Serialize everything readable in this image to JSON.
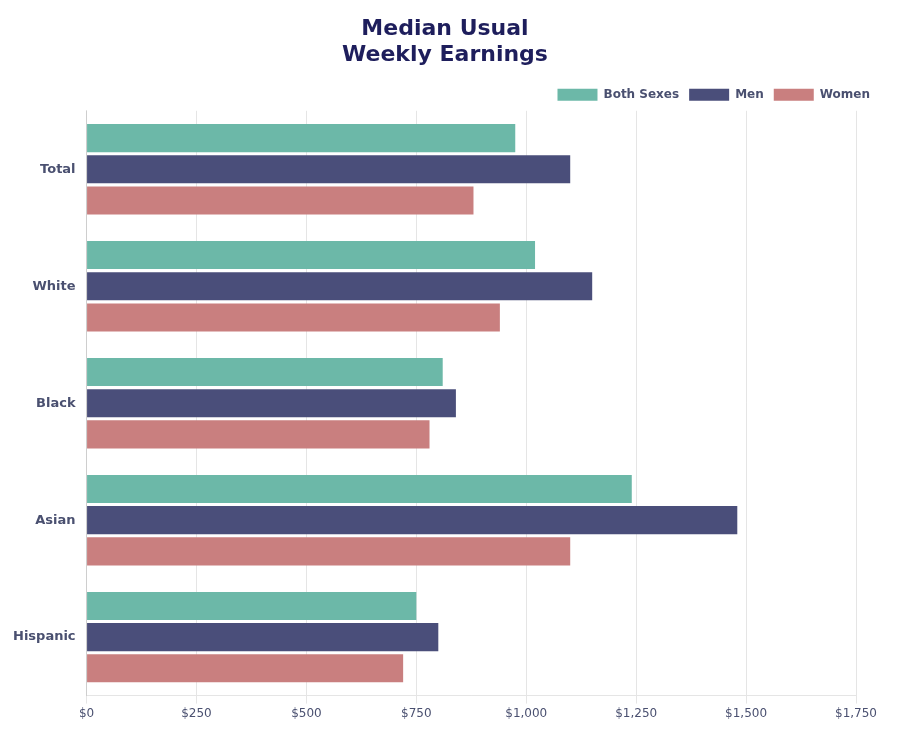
{
  "chart_data": {
    "type": "bar",
    "orientation": "horizontal",
    "title": "Median Usual\nWeekly Earnings",
    "categories": [
      "Total",
      "White",
      "Black",
      "Asian",
      "Hispanic"
    ],
    "series": [
      {
        "name": "Both Sexes",
        "color": "#6cb8a8",
        "values": [
          975,
          1020,
          810,
          1240,
          750
        ]
      },
      {
        "name": "Men",
        "color": "#4a4e7a",
        "values": [
          1100,
          1150,
          840,
          1480,
          800
        ]
      },
      {
        "name": "Women",
        "color": "#c97f7f",
        "values": [
          880,
          940,
          780,
          1100,
          720
        ]
      }
    ],
    "xlim": [
      0,
      1750
    ],
    "xticks": [
      {
        "value": 0,
        "label": "$0"
      },
      {
        "value": 250,
        "label": "$250"
      },
      {
        "value": 500,
        "label": "$500"
      },
      {
        "value": 750,
        "label": "$750"
      },
      {
        "value": 1000,
        "label": "$1,000"
      },
      {
        "value": 1250,
        "label": "$1,250"
      },
      {
        "value": 1500,
        "label": "$1,500"
      },
      {
        "value": 1750,
        "label": "$1,750"
      }
    ],
    "grid": true,
    "legend": "upper right"
  }
}
